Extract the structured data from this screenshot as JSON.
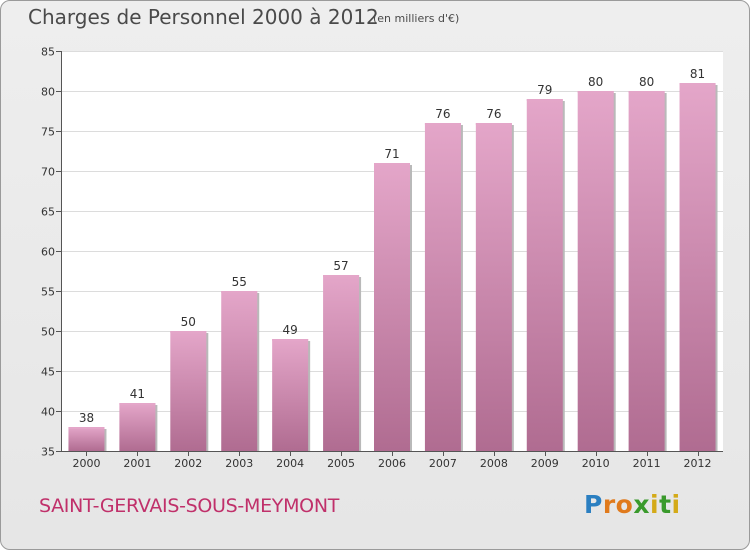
{
  "header": {
    "title": "Charges de Personnel 2000 à 2012",
    "unit": "(en milliers d'€)"
  },
  "footer": {
    "town": "SAINT-GERVAIS-SOUS-MEYMONT",
    "logo": [
      "P",
      "r",
      "o",
      "x",
      "i",
      "t",
      "i"
    ]
  },
  "colors": {
    "bar": "#c67ba4",
    "bar_light": "#e4a6c9",
    "bar_dark": "#b06c91",
    "town": "#c0306a",
    "logo": [
      "#2b7fc1",
      "#e07a1c",
      "#e07a1c",
      "#3a9a2c",
      "#d4aa18",
      "#3a9a2c",
      "#d4aa18"
    ]
  },
  "chart_data": {
    "type": "bar",
    "categories": [
      "2000",
      "2001",
      "2002",
      "2003",
      "2004",
      "2005",
      "2006",
      "2007",
      "2008",
      "2009",
      "2010",
      "2011",
      "2012"
    ],
    "values": [
      38,
      41,
      50,
      55,
      49,
      57,
      71,
      76,
      76,
      79,
      80,
      80,
      81
    ],
    "title": "Charges de Personnel 2000 à 2012",
    "xlabel": "",
    "ylabel": "",
    "ylim": [
      35,
      85
    ],
    "yticks": [
      35,
      40,
      45,
      50,
      55,
      60,
      65,
      70,
      75,
      80,
      85
    ],
    "grid": true
  }
}
